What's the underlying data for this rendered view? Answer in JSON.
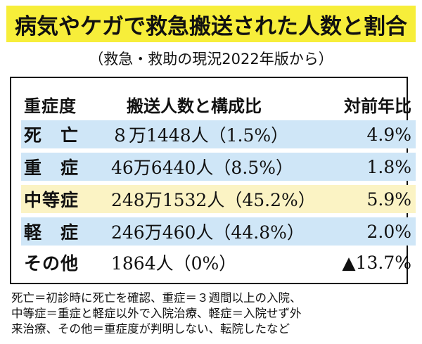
{
  "title": "病気やケガで救急搬送された人数と割合",
  "subtitle": "（救急・救助の現況2022年版から）",
  "table": {
    "header": {
      "name": "重症度",
      "count": "搬送人数と構成比",
      "ratio": "対前年比"
    },
    "rows": [
      {
        "name": "死　亡",
        "count": "８万1448人（1.5%）",
        "ratio": "4.9%",
        "shade": "#cfe6f7"
      },
      {
        "name": "重　症",
        "count": "46万6440人（8.5%）",
        "ratio": "1.8%",
        "shade": "#cfe6f7"
      },
      {
        "name": "中等症",
        "count": "248万1532人（45.2%）",
        "ratio": "5.9%",
        "shade": "#fbf3c4"
      },
      {
        "name": "軽　症",
        "count": "246万460人（44.8%）",
        "ratio": "2.0%",
        "shade": "#cfe6f7"
      },
      {
        "name": "その他",
        "count": "1864人（0%）",
        "ratio": "▲13.7%",
        "shade": ""
      }
    ]
  },
  "footnote": {
    "line1": "死亡＝初診時に死亡を確認、重症＝３週間以上の入院、",
    "line2": "中等症＝重症と軽症以外で入院治療、軽症＝入院せず外",
    "line3": "来治療、その他＝重症度が判明しない、転院したなど"
  },
  "colors": {
    "title_bg": "#f7ee3a",
    "row_blue": "#cfe6f7",
    "row_yellow": "#fbf3c4"
  }
}
